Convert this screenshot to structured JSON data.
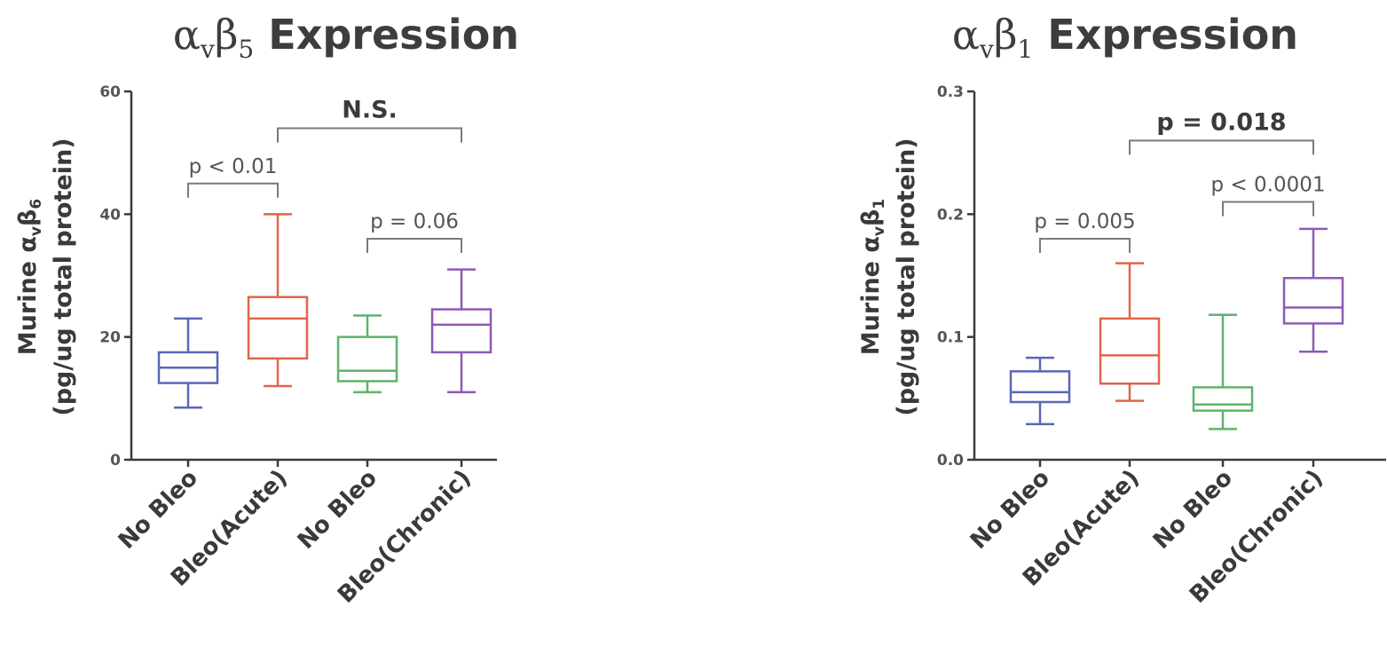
{
  "colors": {
    "axis": "#3a3a3a",
    "bracket": "#7a7a7a",
    "groups": [
      "#5b66b8",
      "#e0654d",
      "#5fb36a",
      "#8e5ab3"
    ]
  },
  "chart_data": [
    {
      "type": "box",
      "title": {
        "prefix": "α",
        "sub1": "v",
        "mid": "β",
        "sub2": "5",
        "rest": " Expression"
      },
      "ylabel": {
        "line1_prefix": "Murine α",
        "sub1": "v",
        "mid": "β",
        "sub2": "6",
        "line2": "(pg/ug total protein)"
      },
      "ylim": [
        0,
        60
      ],
      "yticks": [
        "0",
        "20",
        "40",
        "60"
      ],
      "yticks_values": [
        0,
        20,
        40,
        60
      ],
      "categories": [
        "No Bleo",
        "Bleo(Acute)",
        "No Bleo",
        "Bleo(Chronic)"
      ],
      "boxes": [
        {
          "min": 8.5,
          "q1": 12.5,
          "median": 15,
          "q3": 17.5,
          "max": 23
        },
        {
          "min": 12,
          "q1": 16.5,
          "median": 23,
          "q3": 26.5,
          "max": 40
        },
        {
          "min": 11,
          "q1": 12.8,
          "median": 14.5,
          "q3": 20,
          "max": 23.5
        },
        {
          "min": 11,
          "q1": 17.5,
          "median": 22,
          "q3": 24.5,
          "max": 31
        }
      ],
      "comparisons": [
        {
          "from": 0,
          "to": 1,
          "y": 45,
          "label": "p < 0.01",
          "bold": false
        },
        {
          "from": 1,
          "to": 3,
          "y": 54,
          "label": "N.S.",
          "bold": true
        },
        {
          "from": 2,
          "to": 3,
          "y": 36,
          "label": "p = 0.06",
          "bold": false
        }
      ]
    },
    {
      "type": "box",
      "title": {
        "prefix": "α",
        "sub1": "v",
        "mid": "β",
        "sub2": "1",
        "rest": " Expression"
      },
      "ylabel": {
        "line1_prefix": "Murine α",
        "sub1": "v",
        "mid": "β",
        "sub2": "1",
        "line2": "(pg/ug total protein)"
      },
      "ylim": [
        0,
        0.3
      ],
      "yticks": [
        "0.0",
        "0.1",
        "0.2",
        "0.3"
      ],
      "yticks_values": [
        0,
        0.1,
        0.2,
        0.3
      ],
      "categories": [
        "No Bleo",
        "Bleo(Acute)",
        "No Bleo",
        "Bleo(Chronic)"
      ],
      "boxes": [
        {
          "min": 0.029,
          "q1": 0.047,
          "median": 0.055,
          "q3": 0.072,
          "max": 0.083
        },
        {
          "min": 0.048,
          "q1": 0.062,
          "median": 0.085,
          "q3": 0.115,
          "max": 0.16
        },
        {
          "min": 0.025,
          "q1": 0.04,
          "median": 0.045,
          "q3": 0.059,
          "max": 0.118
        },
        {
          "min": 0.088,
          "q1": 0.111,
          "median": 0.124,
          "q3": 0.148,
          "max": 0.188
        }
      ],
      "comparisons": [
        {
          "from": 0,
          "to": 1,
          "y": 0.18,
          "label": "p = 0.005",
          "bold": false
        },
        {
          "from": 1,
          "to": 3,
          "y": 0.26,
          "label": "p = 0.018",
          "bold": true
        },
        {
          "from": 2,
          "to": 3,
          "y": 0.21,
          "label": "p < 0.0001",
          "bold": false
        }
      ]
    }
  ]
}
